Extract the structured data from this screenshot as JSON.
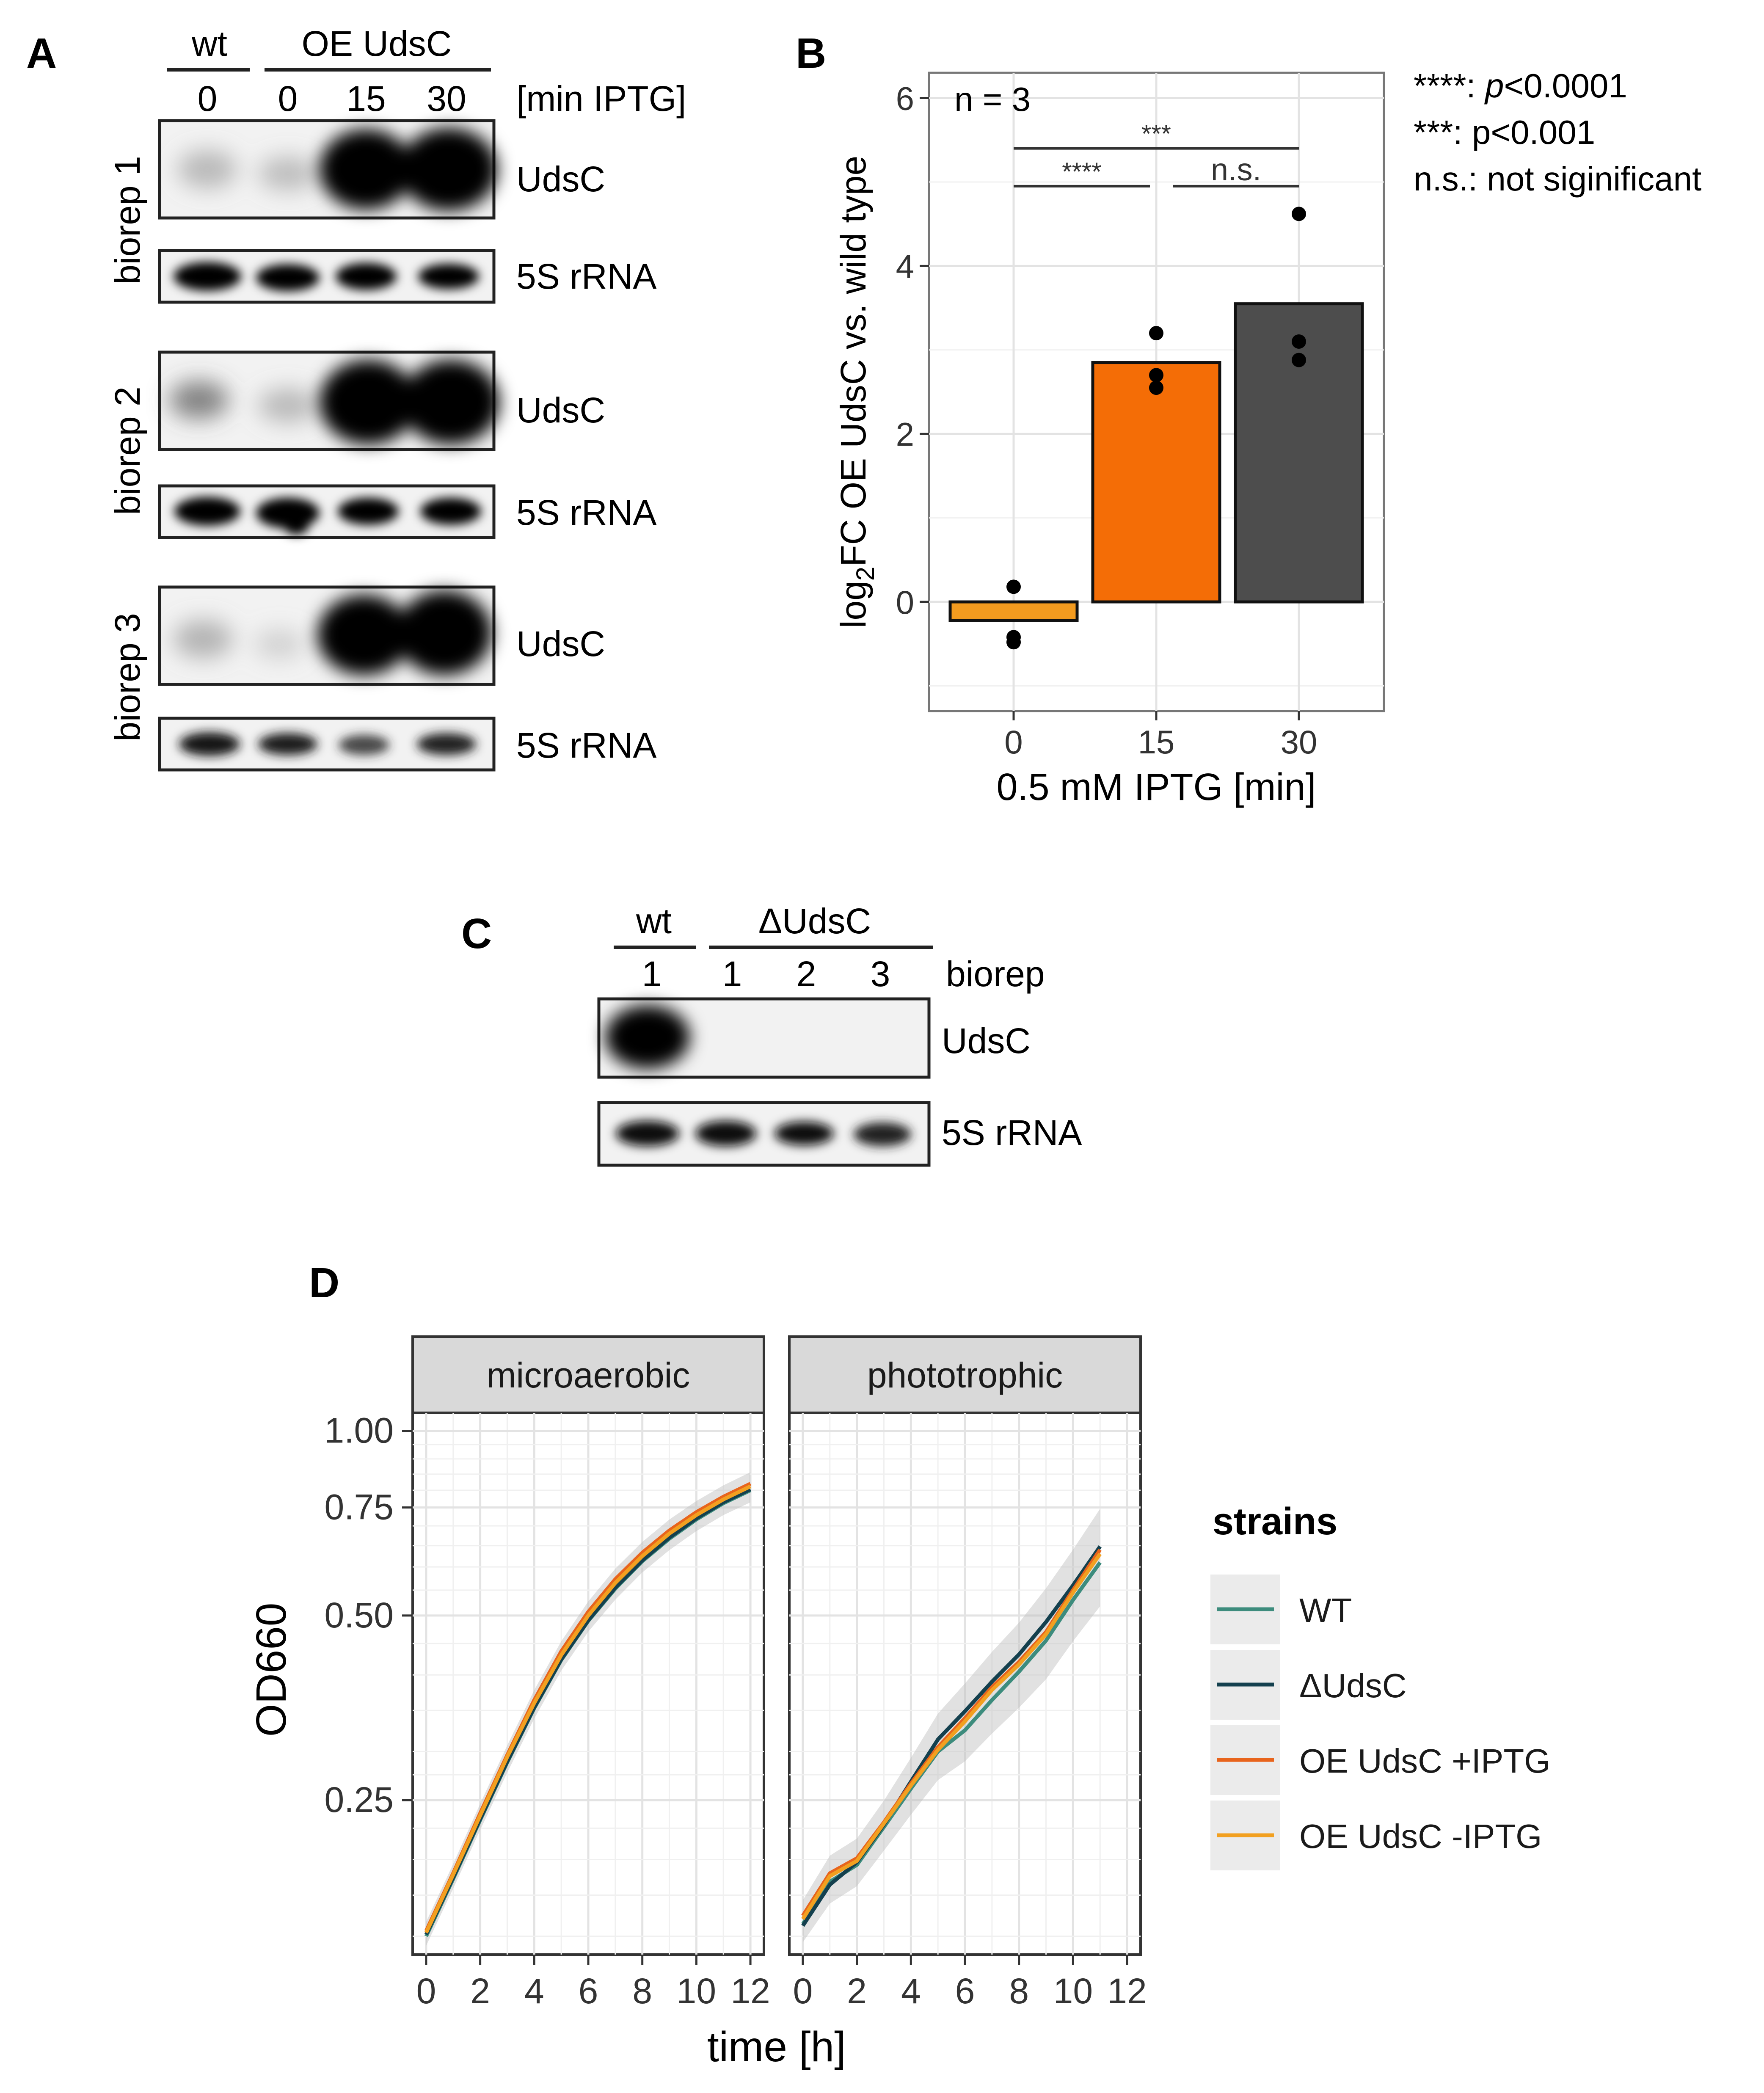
{
  "panel_labels": {
    "a": "A",
    "b": "B",
    "c": "C",
    "d": "D"
  },
  "colors": {
    "wt": "#3d8c7d",
    "delta": "#14404e",
    "oe_plus": "#e8641c",
    "oe_minus": "#f2a020",
    "bar_15": "#f46d06",
    "bar_30": "#4d4d4d",
    "bar_0": "#f39b1f"
  },
  "panel_a": {
    "group_wt": "wt",
    "group_oe": "OE UdsC",
    "lanes": [
      "0",
      "0",
      "15",
      "30"
    ],
    "lane_unit": "[min IPTG]",
    "bioreps": [
      "biorep 1",
      "biorep 2",
      "biorep 3"
    ],
    "band_udsc": "UdsC",
    "band_5s": "5S rRNA"
  },
  "panel_c": {
    "group_wt": "wt",
    "group_delta": "ΔUdsC",
    "lanes": [
      "1",
      "1",
      "2",
      "3"
    ],
    "lane_unit": "biorep",
    "band_udsc": "UdsC",
    "band_5s": "5S rRNA"
  },
  "legend_sig": {
    "l1_stars": "****: ",
    "l1_p": "p",
    "l1_val": "<0.0001",
    "l2": "***: p<0.001",
    "l3": "n.s.: not siginificant"
  },
  "chart_data": [
    {
      "panel": "B",
      "type": "bar",
      "categories": [
        "0",
        "15",
        "30"
      ],
      "values": [
        -0.22,
        2.85,
        3.55
      ],
      "points": [
        [
          0.18,
          -0.42,
          -0.48
        ],
        [
          3.2,
          2.7,
          2.55
        ],
        [
          4.62,
          3.1,
          2.88
        ]
      ],
      "annotation": "n = 3",
      "significance": [
        {
          "from": "0",
          "to": "30",
          "label": "***"
        },
        {
          "from": "0",
          "to": "15",
          "label": "****"
        },
        {
          "from": "15",
          "to": "30",
          "label": "n.s."
        }
      ],
      "ylabel_pre": "log",
      "ylabel_sub": "2",
      "ylabel_post": "FC OE UdsC vs. wild type",
      "xlabel": "0.5 mM IPTG [min]",
      "ylim": [
        -1.3,
        6.3
      ],
      "yticks": [
        "0",
        "2",
        "4",
        "6"
      ]
    },
    {
      "panel": "D",
      "type": "line",
      "facets": [
        "microaerobic",
        "phototrophic"
      ],
      "xlabel": "time [h]",
      "ylabel": "OD660",
      "y_scale": "log",
      "yticks": [
        "0.25",
        "0.50",
        "0.75",
        "1.00"
      ],
      "xticks": [
        "0",
        "2",
        "4",
        "6",
        "8",
        "10",
        "12"
      ],
      "xlim": [
        -0.5,
        12.5
      ],
      "ylim": [
        0.14,
        1.07
      ],
      "legend_title": "strains",
      "series": [
        {
          "name": "WT",
          "microaerobic": [
            [
              0,
              0.15
            ],
            [
              1,
              0.186
            ],
            [
              2,
              0.232
            ],
            [
              3,
              0.288
            ],
            [
              4,
              0.353
            ],
            [
              5,
              0.423
            ],
            [
              6,
              0.49
            ],
            [
              7,
              0.553
            ],
            [
              8,
              0.613
            ],
            [
              9,
              0.667
            ],
            [
              10,
              0.717
            ],
            [
              11,
              0.762
            ],
            [
              12,
              0.8
            ]
          ],
          "phototrophic": [
            [
              0,
              0.157
            ],
            [
              1,
              0.184
            ],
            [
              2,
              0.196
            ],
            [
              3,
              0.226
            ],
            [
              4,
              0.261
            ],
            [
              5,
              0.3
            ],
            [
              6,
              0.325
            ],
            [
              7,
              0.364
            ],
            [
              8,
              0.405
            ],
            [
              9,
              0.455
            ],
            [
              10,
              0.53
            ],
            [
              11,
              0.61
            ]
          ]
        },
        {
          "name": "ΔUdsC",
          "microaerobic": [
            [
              0,
              0.151
            ],
            [
              1,
              0.187
            ],
            [
              2,
              0.233
            ],
            [
              3,
              0.289
            ],
            [
              4,
              0.354
            ],
            [
              5,
              0.424
            ],
            [
              6,
              0.491
            ],
            [
              7,
              0.555
            ],
            [
              8,
              0.615
            ],
            [
              9,
              0.67
            ],
            [
              10,
              0.72
            ],
            [
              11,
              0.765
            ],
            [
              12,
              0.803
            ]
          ],
          "phototrophic": [
            [
              0,
              0.156
            ],
            [
              1,
              0.182
            ],
            [
              2,
              0.198
            ],
            [
              3,
              0.228
            ],
            [
              4,
              0.268
            ],
            [
              5,
              0.314
            ],
            [
              6,
              0.349
            ],
            [
              7,
              0.39
            ],
            [
              8,
              0.432
            ],
            [
              9,
              0.488
            ],
            [
              10,
              0.56
            ],
            [
              11,
              0.648
            ]
          ]
        },
        {
          "name": "OE UdsC +IPTG",
          "microaerobic": [
            [
              0,
              0.153
            ],
            [
              1,
              0.19
            ],
            [
              2,
              0.238
            ],
            [
              3,
              0.296
            ],
            [
              4,
              0.364
            ],
            [
              5,
              0.437
            ],
            [
              6,
              0.507
            ],
            [
              7,
              0.573
            ],
            [
              8,
              0.633
            ],
            [
              9,
              0.688
            ],
            [
              10,
              0.737
            ],
            [
              11,
              0.781
            ],
            [
              12,
              0.82
            ]
          ],
          "phototrophic": [
            [
              0,
              0.162
            ],
            [
              1,
              0.19
            ],
            [
              2,
              0.201
            ],
            [
              3,
              0.23
            ],
            [
              4,
              0.266
            ],
            [
              5,
              0.305
            ],
            [
              6,
              0.34
            ],
            [
              7,
              0.382
            ],
            [
              8,
              0.42
            ],
            [
              9,
              0.47
            ],
            [
              10,
              0.55
            ],
            [
              11,
              0.64
            ]
          ]
        },
        {
          "name": "OE UdsC -IPTG",
          "microaerobic": [
            [
              0,
              0.152
            ],
            [
              1,
              0.189
            ],
            [
              2,
              0.236
            ],
            [
              3,
              0.294
            ],
            [
              4,
              0.36
            ],
            [
              5,
              0.431
            ],
            [
              6,
              0.5
            ],
            [
              7,
              0.565
            ],
            [
              8,
              0.625
            ],
            [
              9,
              0.68
            ],
            [
              10,
              0.729
            ],
            [
              11,
              0.773
            ],
            [
              12,
              0.812
            ]
          ],
          "phototrophic": [
            [
              0,
              0.16
            ],
            [
              1,
              0.188
            ],
            [
              2,
              0.199
            ],
            [
              3,
              0.229
            ],
            [
              4,
              0.264
            ],
            [
              5,
              0.302
            ],
            [
              6,
              0.336
            ],
            [
              7,
              0.378
            ],
            [
              8,
              0.416
            ],
            [
              9,
              0.466
            ],
            [
              10,
              0.545
            ],
            [
              11,
              0.63
            ]
          ]
        }
      ]
    }
  ]
}
